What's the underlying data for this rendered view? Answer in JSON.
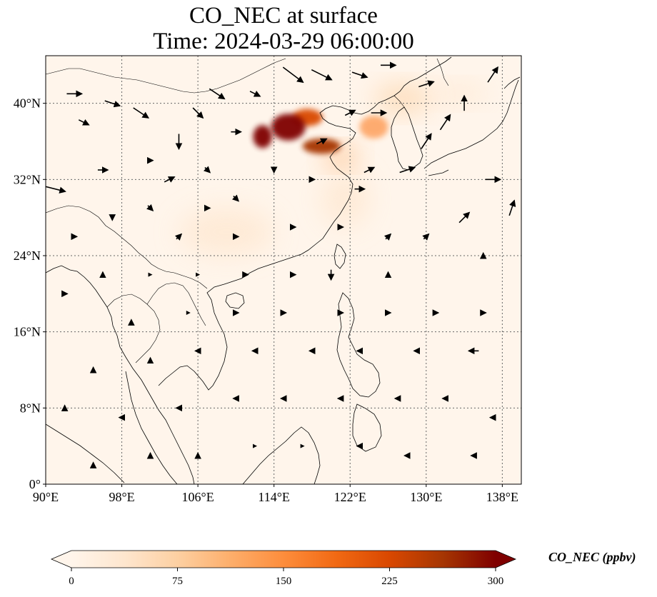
{
  "title": {
    "line1": "CO_NEC at surface",
    "line2": "Time: 2024-03-29 06:00:00"
  },
  "map": {
    "lon_range": [
      90,
      140
    ],
    "lat_range": [
      0,
      45
    ],
    "lon_ticks": [
      {
        "value": 90,
        "label": "90°E"
      },
      {
        "value": 98,
        "label": "98°E"
      },
      {
        "value": 106,
        "label": "106°E"
      },
      {
        "value": 114,
        "label": "114°E"
      },
      {
        "value": 122,
        "label": "122°E"
      },
      {
        "value": 130,
        "label": "130°E"
      },
      {
        "value": 138,
        "label": "138°E"
      }
    ],
    "lat_ticks": [
      {
        "value": 0,
        "label": "0°"
      },
      {
        "value": 8,
        "label": "8°N"
      },
      {
        "value": 16,
        "label": "16°N"
      },
      {
        "value": 24,
        "label": "24°N"
      },
      {
        "value": 32,
        "label": "32°N"
      },
      {
        "value": 40,
        "label": "40°N"
      }
    ],
    "gridlines": true,
    "background_color": "#fff5eb",
    "coastline_color": "#000000",
    "vector_color": "#000000"
  },
  "colorbar": {
    "label": "CO_NEC (ppbv)",
    "min": 0,
    "max": 300,
    "ticks": [
      {
        "value": 0,
        "label": "0"
      },
      {
        "value": 75,
        "label": "75"
      },
      {
        "value": 150,
        "label": "150"
      },
      {
        "value": 225,
        "label": "225"
      },
      {
        "value": 300,
        "label": "300"
      }
    ],
    "extend": "both",
    "colormap": [
      "#fff5eb",
      "#fee6ce",
      "#fdd0a2",
      "#fdae6b",
      "#fd8d3c",
      "#f16913",
      "#d94801",
      "#a63603",
      "#7f0000"
    ]
  },
  "plumes": [
    {
      "lon": 115.5,
      "lat": 37.5,
      "value": 290,
      "sx": 1.8,
      "sy": 1.4
    },
    {
      "lon": 112.8,
      "lat": 36.5,
      "value": 300,
      "sx": 1.0,
      "sy": 1.2
    },
    {
      "lon": 119.0,
      "lat": 35.5,
      "value": 260,
      "sx": 2.0,
      "sy": 0.8
    },
    {
      "lon": 117.5,
      "lat": 38.5,
      "value": 230,
      "sx": 1.6,
      "sy": 0.9
    },
    {
      "lon": 124.5,
      "lat": 37.5,
      "value": 150,
      "sx": 1.5,
      "sy": 1.2
    },
    {
      "lon": 121.0,
      "lat": 34.5,
      "value": 110,
      "sx": 1.8,
      "sy": 1.0
    },
    {
      "lon": 127.5,
      "lat": 40.5,
      "value": 80,
      "sx": 3.0,
      "sy": 1.4
    },
    {
      "lon": 133.5,
      "lat": 41.0,
      "value": 55,
      "sx": 3.0,
      "sy": 1.0
    },
    {
      "lon": 121.5,
      "lat": 30.0,
      "value": 45,
      "sx": 2.5,
      "sy": 3.0
    },
    {
      "lon": 109.0,
      "lat": 26.5,
      "value": 30,
      "sx": 5.0,
      "sy": 2.5
    }
  ],
  "wind": [
    {
      "lon": 91,
      "lat": 31,
      "u": 4,
      "v": -1
    },
    {
      "lon": 93,
      "lat": 41,
      "u": 3,
      "v": 0
    },
    {
      "lon": 94,
      "lat": 38,
      "u": 2,
      "v": -1
    },
    {
      "lon": 97,
      "lat": 40,
      "u": 3,
      "v": -1
    },
    {
      "lon": 100,
      "lat": 39,
      "u": 3,
      "v": -2
    },
    {
      "lon": 104,
      "lat": 36,
      "u": 0,
      "v": -3
    },
    {
      "lon": 106,
      "lat": 39,
      "u": 2,
      "v": -2
    },
    {
      "lon": 108,
      "lat": 41,
      "u": 3,
      "v": -2
    },
    {
      "lon": 110,
      "lat": 37,
      "u": 2,
      "v": 0
    },
    {
      "lon": 103,
      "lat": 32,
      "u": 2,
      "v": 1
    },
    {
      "lon": 96,
      "lat": 33,
      "u": 2,
      "v": 0
    },
    {
      "lon": 101,
      "lat": 34,
      "u": 1,
      "v": 0
    },
    {
      "lon": 107,
      "lat": 33,
      "u": 1,
      "v": -1
    },
    {
      "lon": 112,
      "lat": 41,
      "u": 2,
      "v": -1
    },
    {
      "lon": 116,
      "lat": 43,
      "u": 4,
      "v": -3
    },
    {
      "lon": 119,
      "lat": 43,
      "u": 4,
      "v": -2
    },
    {
      "lon": 123,
      "lat": 43,
      "u": 3,
      "v": -1
    },
    {
      "lon": 126,
      "lat": 44,
      "u": 3,
      "v": 0
    },
    {
      "lon": 130,
      "lat": 42,
      "u": 3,
      "v": 1
    },
    {
      "lon": 132,
      "lat": 38,
      "u": 2,
      "v": 3
    },
    {
      "lon": 130,
      "lat": 36,
      "u": 2,
      "v": 3
    },
    {
      "lon": 134,
      "lat": 40,
      "u": 0,
      "v": 3
    },
    {
      "lon": 137,
      "lat": 43,
      "u": 2,
      "v": 3
    },
    {
      "lon": 137,
      "lat": 32,
      "u": 3,
      "v": 0
    },
    {
      "lon": 139,
      "lat": 29,
      "u": 1,
      "v": 3
    },
    {
      "lon": 134,
      "lat": 28,
      "u": 2,
      "v": 2
    },
    {
      "lon": 128,
      "lat": 33,
      "u": 3,
      "v": 1
    },
    {
      "lon": 124,
      "lat": 33,
      "u": 2,
      "v": 1
    },
    {
      "lon": 123,
      "lat": 31,
      "u": 2,
      "v": 0
    },
    {
      "lon": 119,
      "lat": 36,
      "u": 2,
      "v": 1
    },
    {
      "lon": 122,
      "lat": 39,
      "u": 2,
      "v": 1
    },
    {
      "lon": 125,
      "lat": 39,
      "u": 3,
      "v": 0
    },
    {
      "lon": 118,
      "lat": 32,
      "u": 1,
      "v": 0
    },
    {
      "lon": 114,
      "lat": 33,
      "u": 0,
      "v": -1
    },
    {
      "lon": 110,
      "lat": 30,
      "u": 1,
      "v": -1
    },
    {
      "lon": 107,
      "lat": 29,
      "u": 1,
      "v": 0
    },
    {
      "lon": 101,
      "lat": 29,
      "u": 1,
      "v": -1
    },
    {
      "lon": 97,
      "lat": 28,
      "u": 0,
      "v": -1
    },
    {
      "lon": 93,
      "lat": 26,
      "u": 1,
      "v": 0
    },
    {
      "lon": 104,
      "lat": 26,
      "u": 1,
      "v": 1
    },
    {
      "lon": 110,
      "lat": 26,
      "u": 1,
      "v": 0
    },
    {
      "lon": 116,
      "lat": 27,
      "u": 1,
      "v": 0
    },
    {
      "lon": 121,
      "lat": 27,
      "u": 1,
      "v": 0
    },
    {
      "lon": 126,
      "lat": 26,
      "u": 1,
      "v": 1
    },
    {
      "lon": 130,
      "lat": 26,
      "u": 1,
      "v": 1
    },
    {
      "lon": 136,
      "lat": 24,
      "u": 0,
      "v": 1
    },
    {
      "lon": 126,
      "lat": 22,
      "u": 0,
      "v": 1
    },
    {
      "lon": 120,
      "lat": 22,
      "u": 0,
      "v": -2
    },
    {
      "lon": 116,
      "lat": 22,
      "u": 1,
      "v": 0
    },
    {
      "lon": 111,
      "lat": 22,
      "u": 1,
      "v": 0
    },
    {
      "lon": 106,
      "lat": 22,
      "u": 0,
      "v": 0
    },
    {
      "lon": 101,
      "lat": 22,
      "u": 0,
      "v": 0
    },
    {
      "lon": 96,
      "lat": 22,
      "u": 0,
      "v": 1
    },
    {
      "lon": 92,
      "lat": 20,
      "u": 1,
      "v": 0
    },
    {
      "lon": 99,
      "lat": 17,
      "u": 0,
      "v": 1
    },
    {
      "lon": 105,
      "lat": 18,
      "u": 0,
      "v": 0
    },
    {
      "lon": 110,
      "lat": 18,
      "u": 1,
      "v": 0
    },
    {
      "lon": 115,
      "lat": 18,
      "u": 1,
      "v": 0
    },
    {
      "lon": 121,
      "lat": 18,
      "u": 1,
      "v": 0
    },
    {
      "lon": 126,
      "lat": 18,
      "u": 1,
      "v": 0
    },
    {
      "lon": 131,
      "lat": 18,
      "u": 1,
      "v": 0
    },
    {
      "lon": 136,
      "lat": 18,
      "u": 1,
      "v": 0
    },
    {
      "lon": 135,
      "lat": 14,
      "u": -2,
      "v": 0
    },
    {
      "lon": 129,
      "lat": 14,
      "u": -1,
      "v": 0
    },
    {
      "lon": 123,
      "lat": 14,
      "u": -1,
      "v": 0
    },
    {
      "lon": 118,
      "lat": 14,
      "u": -1,
      "v": 0
    },
    {
      "lon": 112,
      "lat": 14,
      "u": -1,
      "v": 0
    },
    {
      "lon": 106,
      "lat": 14,
      "u": -1,
      "v": 0
    },
    {
      "lon": 101,
      "lat": 13,
      "u": 0,
      "v": 1
    },
    {
      "lon": 95,
      "lat": 12,
      "u": 0,
      "v": 1
    },
    {
      "lon": 92,
      "lat": 8,
      "u": 0,
      "v": 1
    },
    {
      "lon": 98,
      "lat": 7,
      "u": -1,
      "v": 0
    },
    {
      "lon": 104,
      "lat": 8,
      "u": -1,
      "v": 0
    },
    {
      "lon": 110,
      "lat": 9,
      "u": -1,
      "v": 0
    },
    {
      "lon": 115,
      "lat": 9,
      "u": -1,
      "v": 0
    },
    {
      "lon": 121,
      "lat": 9,
      "u": -1,
      "v": 0
    },
    {
      "lon": 127,
      "lat": 9,
      "u": -1,
      "v": 0
    },
    {
      "lon": 132,
      "lat": 9,
      "u": -1,
      "v": 0
    },
    {
      "lon": 137,
      "lat": 7,
      "u": -1,
      "v": 0
    },
    {
      "lon": 135,
      "lat": 3,
      "u": -1,
      "v": 0
    },
    {
      "lon": 128,
      "lat": 3,
      "u": -1,
      "v": 0
    },
    {
      "lon": 123,
      "lat": 4,
      "u": -1,
      "v": 0
    },
    {
      "lon": 117,
      "lat": 4,
      "u": 0,
      "v": 0
    },
    {
      "lon": 112,
      "lat": 4,
      "u": 0,
      "v": 0
    },
    {
      "lon": 106,
      "lat": 3,
      "u": 0,
      "v": 1
    },
    {
      "lon": 101,
      "lat": 3,
      "u": 0,
      "v": 1
    },
    {
      "lon": 95,
      "lat": 2,
      "u": 0,
      "v": 1
    }
  ]
}
